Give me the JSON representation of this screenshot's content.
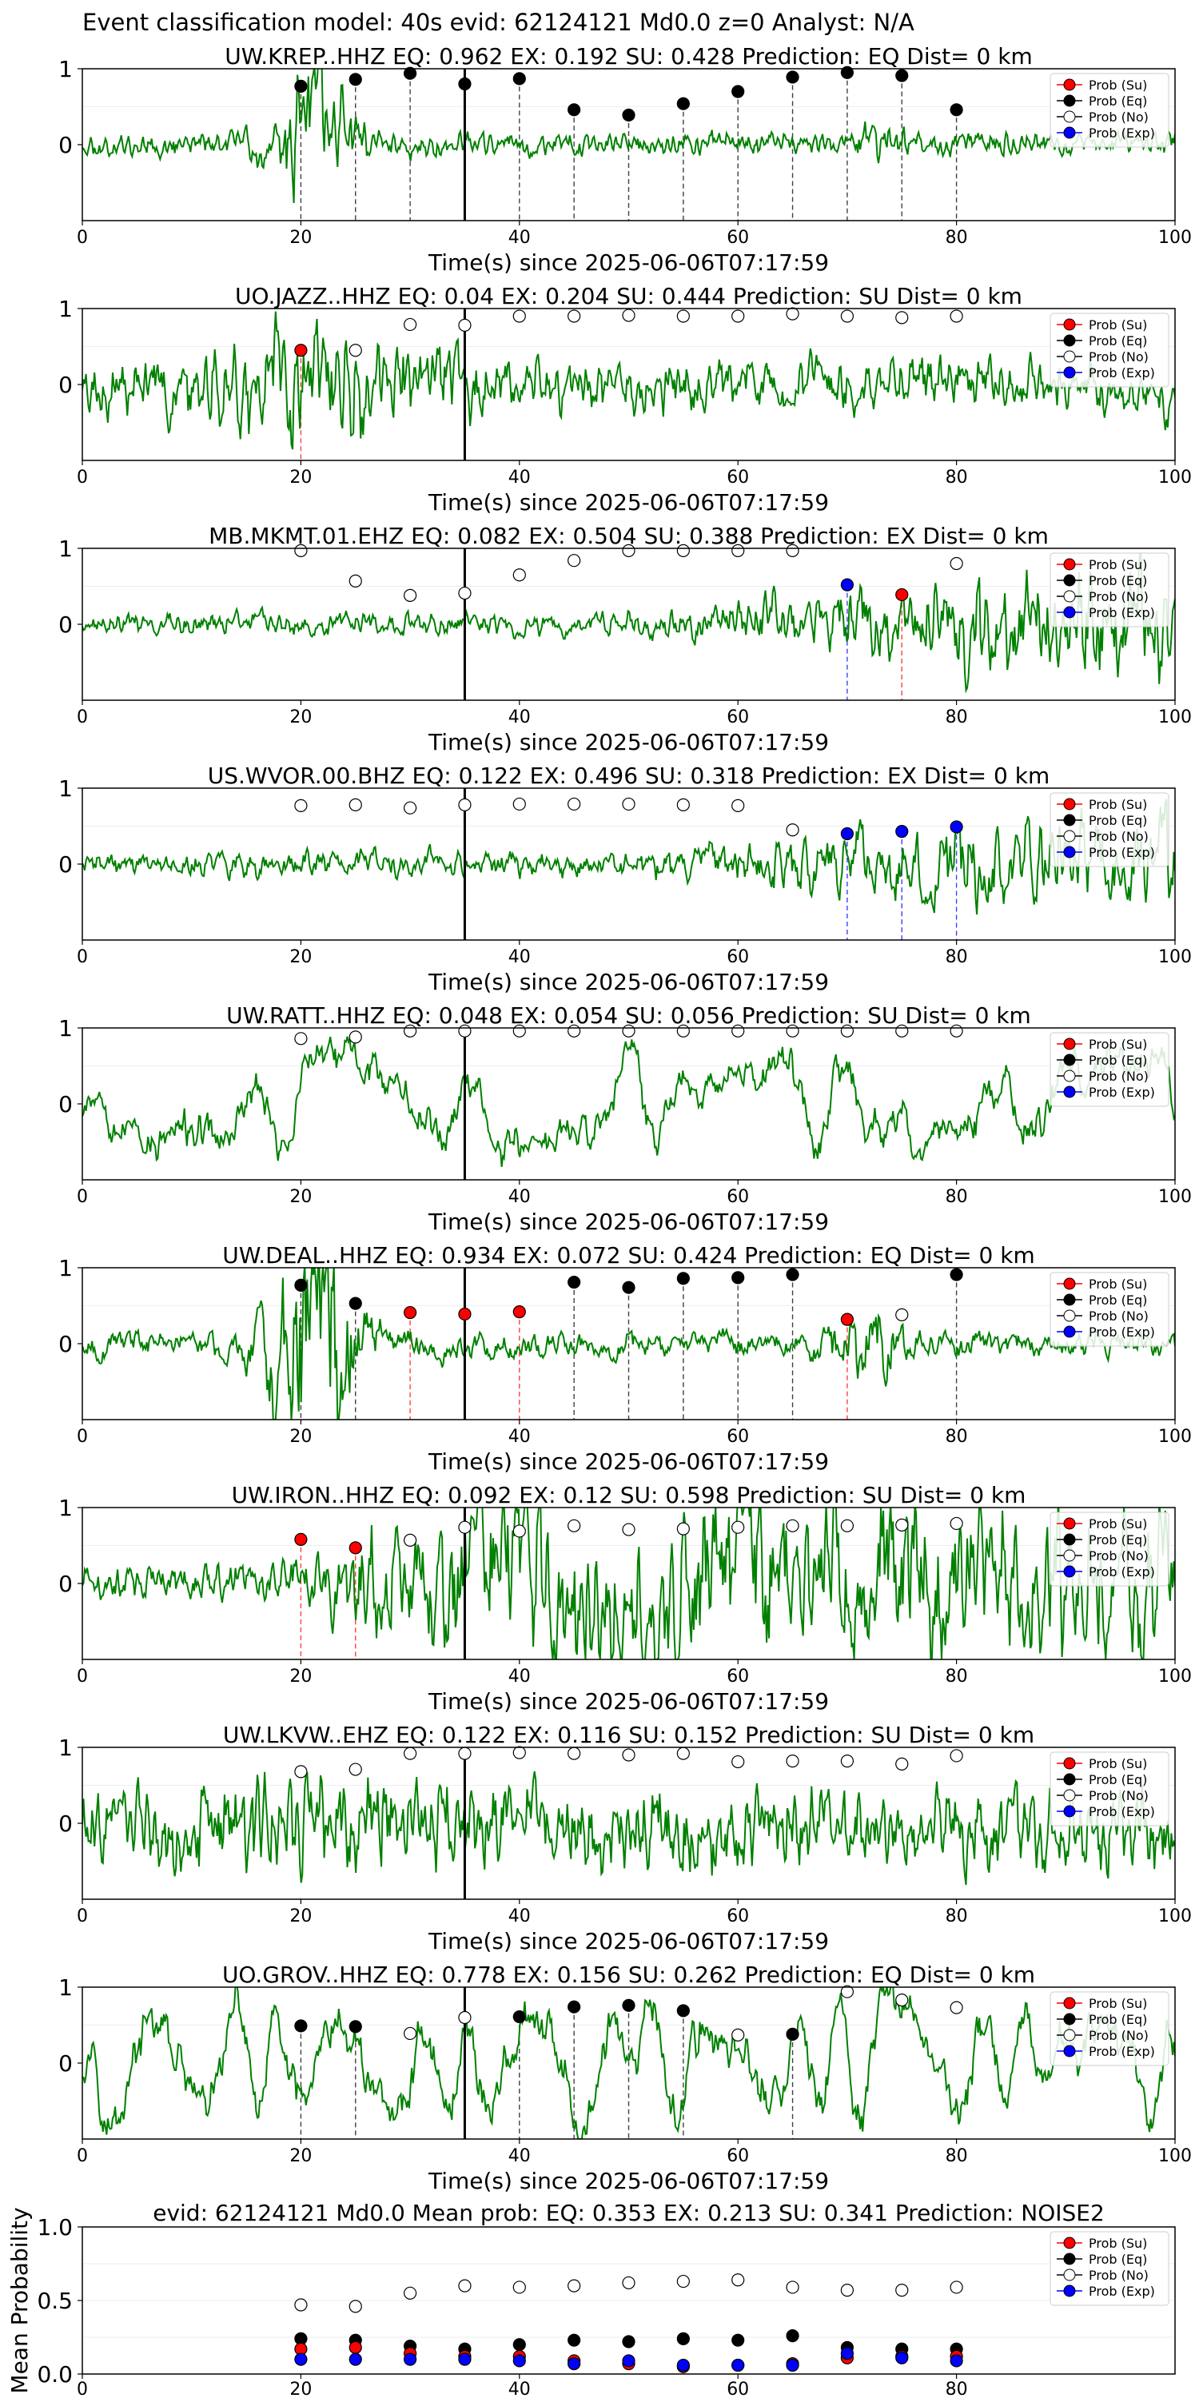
{
  "figure": {
    "suptitle": "Event classification model: 40s evid: 62124121 Md0.0 z=0 Analyst: N/A"
  },
  "legend_labels": [
    "Prob (Su)",
    "Prob (Eq)",
    "Prob (No)",
    "Prob (Exp)"
  ],
  "colors": {
    "waveform": "#008000",
    "su": "#ff0000",
    "eq": "#000000",
    "no": "#ffffff",
    "exp": "#0000ff",
    "event_line": "#000000"
  },
  "chart_data": {
    "stations": [
      {
        "type": "line",
        "title": "UW.KREP..HHZ   EQ: 0.962  EX: 0.192  SU: 0.428   Prediction: EQ    Dist= 0 km",
        "xlabel": "Time(s) since 2025-06-06T07:17:59",
        "xlim": [
          0,
          100
        ],
        "ylim": [
          -1,
          1
        ],
        "xticks": [
          0,
          20,
          40,
          60,
          80,
          100
        ],
        "yticks": [
          0,
          1
        ],
        "wave": {
          "kind": "burst",
          "seed": 11,
          "base": 0.12,
          "gain": 0.25,
          "freq": 3.0
        },
        "event_time": 35,
        "prob_markers": [
          {
            "x": 20,
            "y": 0.77,
            "class": "eq"
          },
          {
            "x": 25,
            "y": 0.86,
            "class": "eq"
          },
          {
            "x": 30,
            "y": 0.94,
            "class": "eq"
          },
          {
            "x": 35,
            "y": 0.8,
            "class": "eq"
          },
          {
            "x": 40,
            "y": 0.87,
            "class": "eq"
          },
          {
            "x": 45,
            "y": 0.46,
            "class": "eq"
          },
          {
            "x": 50,
            "y": 0.39,
            "class": "eq"
          },
          {
            "x": 55,
            "y": 0.54,
            "class": "eq"
          },
          {
            "x": 60,
            "y": 0.7,
            "class": "eq"
          },
          {
            "x": 65,
            "y": 0.89,
            "class": "eq"
          },
          {
            "x": 70,
            "y": 0.95,
            "class": "eq"
          },
          {
            "x": 75,
            "y": 0.91,
            "class": "eq"
          },
          {
            "x": 80,
            "y": 0.46,
            "class": "eq"
          }
        ]
      },
      {
        "type": "line",
        "title": "UO.JAZZ..HHZ   EQ: 0.04  EX: 0.204  SU: 0.444   Prediction: SU    Dist= 0 km",
        "xlabel": "Time(s) since 2025-06-06T07:17:59",
        "xlim": [
          0,
          100
        ],
        "ylim": [
          -1,
          1
        ],
        "xticks": [
          0,
          20,
          40,
          60,
          80,
          100
        ],
        "yticks": [
          0,
          1
        ],
        "wave": {
          "kind": "noisy",
          "seed": 23,
          "base": 0.28,
          "gain": 0.35,
          "freq": 2.2
        },
        "event_time": 35,
        "prob_markers": [
          {
            "x": 20,
            "y": 0.45,
            "class": "su"
          },
          {
            "x": 25,
            "y": 0.45,
            "class": "no"
          },
          {
            "x": 30,
            "y": 0.79,
            "class": "no"
          },
          {
            "x": 35,
            "y": 0.78,
            "class": "no"
          },
          {
            "x": 40,
            "y": 0.9,
            "class": "no"
          },
          {
            "x": 45,
            "y": 0.9,
            "class": "no"
          },
          {
            "x": 50,
            "y": 0.91,
            "class": "no"
          },
          {
            "x": 55,
            "y": 0.9,
            "class": "no"
          },
          {
            "x": 60,
            "y": 0.9,
            "class": "no"
          },
          {
            "x": 65,
            "y": 0.93,
            "class": "no"
          },
          {
            "x": 70,
            "y": 0.9,
            "class": "no"
          },
          {
            "x": 75,
            "y": 0.88,
            "class": "no"
          },
          {
            "x": 80,
            "y": 0.9,
            "class": "no"
          }
        ]
      },
      {
        "type": "line",
        "title": "MB.MKMT.01.EHZ   EQ: 0.082  EX: 0.504  SU: 0.388   Prediction: EX    Dist= 0 km",
        "xlabel": "Time(s) since 2025-06-06T07:17:59",
        "xlim": [
          0,
          100
        ],
        "ylim": [
          -1,
          1
        ],
        "xticks": [
          0,
          20,
          40,
          60,
          80,
          100
        ],
        "yticks": [
          0,
          1
        ],
        "wave": {
          "kind": "rising",
          "seed": 37,
          "base": 0.12,
          "gain": 0.55,
          "freq": 2.6
        },
        "event_time": 35,
        "prob_markers": [
          {
            "x": 20,
            "y": 0.97,
            "class": "no"
          },
          {
            "x": 25,
            "y": 0.57,
            "class": "no"
          },
          {
            "x": 30,
            "y": 0.38,
            "class": "no"
          },
          {
            "x": 35,
            "y": 0.41,
            "class": "no"
          },
          {
            "x": 40,
            "y": 0.65,
            "class": "no"
          },
          {
            "x": 45,
            "y": 0.84,
            "class": "no"
          },
          {
            "x": 50,
            "y": 0.97,
            "class": "no"
          },
          {
            "x": 55,
            "y": 0.97,
            "class": "no"
          },
          {
            "x": 60,
            "y": 0.97,
            "class": "no"
          },
          {
            "x": 65,
            "y": 0.97,
            "class": "no"
          },
          {
            "x": 70,
            "y": 0.52,
            "class": "exp"
          },
          {
            "x": 75,
            "y": 0.39,
            "class": "su"
          },
          {
            "x": 80,
            "y": 0.8,
            "class": "no"
          }
        ]
      },
      {
        "type": "line",
        "title": "US.WVOR.00.BHZ   EQ: 0.122  EX: 0.496  SU: 0.318   Prediction: EX    Dist= 0 km",
        "xlabel": "Time(s) since 2025-06-06T07:17:59",
        "xlim": [
          0,
          100
        ],
        "ylim": [
          -1,
          1
        ],
        "xticks": [
          0,
          20,
          40,
          60,
          80,
          100
        ],
        "yticks": [
          0,
          1
        ],
        "wave": {
          "kind": "rising",
          "seed": 41,
          "base": 0.14,
          "gain": 0.45,
          "freq": 1.6
        },
        "event_time": 35,
        "prob_markers": [
          {
            "x": 20,
            "y": 0.77,
            "class": "no"
          },
          {
            "x": 25,
            "y": 0.78,
            "class": "no"
          },
          {
            "x": 30,
            "y": 0.74,
            "class": "no"
          },
          {
            "x": 35,
            "y": 0.78,
            "class": "no"
          },
          {
            "x": 40,
            "y": 0.79,
            "class": "no"
          },
          {
            "x": 45,
            "y": 0.79,
            "class": "no"
          },
          {
            "x": 50,
            "y": 0.79,
            "class": "no"
          },
          {
            "x": 55,
            "y": 0.78,
            "class": "no"
          },
          {
            "x": 60,
            "y": 0.77,
            "class": "no"
          },
          {
            "x": 65,
            "y": 0.45,
            "class": "no"
          },
          {
            "x": 70,
            "y": 0.4,
            "class": "exp"
          },
          {
            "x": 75,
            "y": 0.43,
            "class": "exp"
          },
          {
            "x": 80,
            "y": 0.49,
            "class": "exp"
          }
        ]
      },
      {
        "type": "line",
        "title": "UW.RATT..HHZ   EQ: 0.048  EX: 0.054  SU: 0.056   Prediction: SU    Dist= 0 km",
        "xlabel": "Time(s) since 2025-06-06T07:17:59",
        "xlim": [
          0,
          100
        ],
        "ylim": [
          -1,
          1
        ],
        "xticks": [
          0,
          20,
          40,
          60,
          80,
          100
        ],
        "yticks": [
          0,
          1
        ],
        "wave": {
          "kind": "slow",
          "seed": 53,
          "base": 0.6,
          "gain": 0.0,
          "freq": 0.55
        },
        "event_time": 35,
        "prob_markers": [
          {
            "x": 20,
            "y": 0.86,
            "class": "no"
          },
          {
            "x": 25,
            "y": 0.88,
            "class": "no"
          },
          {
            "x": 30,
            "y": 0.96,
            "class": "no"
          },
          {
            "x": 35,
            "y": 0.96,
            "class": "no"
          },
          {
            "x": 40,
            "y": 0.96,
            "class": "no"
          },
          {
            "x": 45,
            "y": 0.96,
            "class": "no"
          },
          {
            "x": 50,
            "y": 0.96,
            "class": "no"
          },
          {
            "x": 55,
            "y": 0.96,
            "class": "no"
          },
          {
            "x": 60,
            "y": 0.96,
            "class": "no"
          },
          {
            "x": 65,
            "y": 0.96,
            "class": "no"
          },
          {
            "x": 70,
            "y": 0.96,
            "class": "no"
          },
          {
            "x": 75,
            "y": 0.96,
            "class": "no"
          },
          {
            "x": 80,
            "y": 0.96,
            "class": "no"
          }
        ]
      },
      {
        "type": "line",
        "title": "UW.DEAL..HHZ   EQ: 0.934  EX: 0.072  SU: 0.424   Prediction: EQ    Dist= 0 km",
        "xlabel": "Time(s) since 2025-06-06T07:17:59",
        "xlim": [
          0,
          100
        ],
        "ylim": [
          -1,
          1
        ],
        "xticks": [
          0,
          20,
          40,
          60,
          80,
          100
        ],
        "yticks": [
          0,
          1
        ],
        "wave": {
          "kind": "burst",
          "seed": 67,
          "base": 0.14,
          "gain": 0.6,
          "freq": 0.9
        },
        "event_time": 35,
        "prob_markers": [
          {
            "x": 20,
            "y": 0.77,
            "class": "eq"
          },
          {
            "x": 25,
            "y": 0.53,
            "class": "eq"
          },
          {
            "x": 30,
            "y": 0.41,
            "class": "su"
          },
          {
            "x": 35,
            "y": 0.39,
            "class": "su"
          },
          {
            "x": 40,
            "y": 0.42,
            "class": "su"
          },
          {
            "x": 45,
            "y": 0.81,
            "class": "eq"
          },
          {
            "x": 50,
            "y": 0.74,
            "class": "eq"
          },
          {
            "x": 55,
            "y": 0.86,
            "class": "eq"
          },
          {
            "x": 60,
            "y": 0.87,
            "class": "eq"
          },
          {
            "x": 65,
            "y": 0.91,
            "class": "eq"
          },
          {
            "x": 70,
            "y": 0.32,
            "class": "su"
          },
          {
            "x": 75,
            "y": 0.38,
            "class": "no"
          },
          {
            "x": 80,
            "y": 0.91,
            "class": "eq"
          }
        ]
      },
      {
        "type": "line",
        "title": "UW.IRON..HHZ   EQ: 0.092  EX: 0.12  SU: 0.598   Prediction: SU    Dist= 0 km",
        "xlabel": "Time(s) since 2025-06-06T07:17:59",
        "xlim": [
          0,
          100
        ],
        "ylim": [
          -1,
          1
        ],
        "xticks": [
          0,
          20,
          40,
          60,
          80,
          100
        ],
        "yticks": [
          0,
          1
        ],
        "wave": {
          "kind": "burst_sustain",
          "seed": 71,
          "base": 0.2,
          "gain": 0.7,
          "freq": 2.0
        },
        "event_time": 35,
        "prob_markers": [
          {
            "x": 20,
            "y": 0.58,
            "class": "su"
          },
          {
            "x": 25,
            "y": 0.47,
            "class": "su"
          },
          {
            "x": 30,
            "y": 0.57,
            "class": "no"
          },
          {
            "x": 35,
            "y": 0.74,
            "class": "no"
          },
          {
            "x": 40,
            "y": 0.69,
            "class": "no"
          },
          {
            "x": 45,
            "y": 0.76,
            "class": "no"
          },
          {
            "x": 50,
            "y": 0.71,
            "class": "no"
          },
          {
            "x": 55,
            "y": 0.72,
            "class": "no"
          },
          {
            "x": 60,
            "y": 0.74,
            "class": "no"
          },
          {
            "x": 65,
            "y": 0.76,
            "class": "no"
          },
          {
            "x": 70,
            "y": 0.76,
            "class": "no"
          },
          {
            "x": 75,
            "y": 0.77,
            "class": "no"
          },
          {
            "x": 80,
            "y": 0.79,
            "class": "no"
          }
        ]
      },
      {
        "type": "line",
        "title": "UW.LKVW..EHZ   EQ: 0.122  EX: 0.116  SU: 0.152   Prediction: SU    Dist= 0 km",
        "xlabel": "Time(s) since 2025-06-06T07:17:59",
        "xlim": [
          0,
          100
        ],
        "ylim": [
          -1,
          1
        ],
        "xticks": [
          0,
          20,
          40,
          60,
          80,
          100
        ],
        "yticks": [
          0,
          1
        ],
        "wave": {
          "kind": "noisy",
          "seed": 83,
          "base": 0.45,
          "gain": 0.05,
          "freq": 2.8
        },
        "event_time": 35,
        "prob_markers": [
          {
            "x": 20,
            "y": 0.68,
            "class": "no"
          },
          {
            "x": 25,
            "y": 0.71,
            "class": "no"
          },
          {
            "x": 30,
            "y": 0.92,
            "class": "no"
          },
          {
            "x": 35,
            "y": 0.92,
            "class": "no"
          },
          {
            "x": 40,
            "y": 0.93,
            "class": "no"
          },
          {
            "x": 45,
            "y": 0.92,
            "class": "no"
          },
          {
            "x": 50,
            "y": 0.9,
            "class": "no"
          },
          {
            "x": 55,
            "y": 0.92,
            "class": "no"
          },
          {
            "x": 60,
            "y": 0.81,
            "class": "no"
          },
          {
            "x": 65,
            "y": 0.82,
            "class": "no"
          },
          {
            "x": 70,
            "y": 0.82,
            "class": "no"
          },
          {
            "x": 75,
            "y": 0.78,
            "class": "no"
          },
          {
            "x": 80,
            "y": 0.89,
            "class": "no"
          }
        ]
      },
      {
        "type": "line",
        "title": "UO.GROV..HHZ   EQ: 0.778  EX: 0.156  SU: 0.262   Prediction: EQ    Dist= 0 km",
        "xlabel": "Time(s) since 2025-06-06T07:17:59",
        "xlim": [
          0,
          100
        ],
        "ylim": [
          -1,
          1
        ],
        "xticks": [
          0,
          20,
          40,
          60,
          80,
          100
        ],
        "yticks": [
          0,
          1
        ],
        "wave": {
          "kind": "slow",
          "seed": 97,
          "base": 0.7,
          "gain": 0.0,
          "freq": 1.1
        },
        "event_time": 35,
        "prob_markers": [
          {
            "x": 20,
            "y": 0.49,
            "class": "eq"
          },
          {
            "x": 25,
            "y": 0.48,
            "class": "eq"
          },
          {
            "x": 30,
            "y": 0.39,
            "class": "no"
          },
          {
            "x": 35,
            "y": 0.6,
            "class": "no"
          },
          {
            "x": 40,
            "y": 0.61,
            "class": "eq"
          },
          {
            "x": 45,
            "y": 0.74,
            "class": "eq"
          },
          {
            "x": 50,
            "y": 0.76,
            "class": "eq"
          },
          {
            "x": 55,
            "y": 0.69,
            "class": "eq"
          },
          {
            "x": 60,
            "y": 0.37,
            "class": "no"
          },
          {
            "x": 65,
            "y": 0.38,
            "class": "eq"
          },
          {
            "x": 70,
            "y": 0.94,
            "class": "no"
          },
          {
            "x": 75,
            "y": 0.83,
            "class": "no"
          },
          {
            "x": 80,
            "y": 0.73,
            "class": "no"
          }
        ]
      }
    ],
    "summary": {
      "type": "scatter",
      "title": "evid: 62124121  Md0.0   Mean prob:    EQ: 0.353  EX: 0.213  SU: 0.341   Prediction: NOISE2",
      "ylabel": "Mean Probability",
      "xlim": [
        0,
        100
      ],
      "ylim": [
        0,
        1
      ],
      "xticks": [
        0,
        20,
        40,
        60,
        80
      ],
      "yticks": [
        0.0,
        0.5,
        1.0
      ],
      "ytick_labels": [
        "0.0",
        "0.5",
        "1.0"
      ],
      "x": [
        20,
        25,
        30,
        35,
        40,
        45,
        50,
        55,
        60,
        65,
        70,
        75,
        80
      ],
      "series": [
        {
          "name": "Prob (No)",
          "class": "no",
          "values": [
            0.47,
            0.46,
            0.55,
            0.6,
            0.59,
            0.6,
            0.62,
            0.63,
            0.64,
            0.59,
            0.57,
            0.57,
            0.59
          ]
        },
        {
          "name": "Prob (Eq)",
          "class": "eq",
          "values": [
            0.24,
            0.23,
            0.19,
            0.17,
            0.2,
            0.23,
            0.22,
            0.24,
            0.23,
            0.26,
            0.18,
            0.17,
            0.17
          ]
        },
        {
          "name": "Prob (Su)",
          "class": "su",
          "values": [
            0.17,
            0.18,
            0.14,
            0.12,
            0.12,
            0.09,
            0.07,
            0.05,
            0.06,
            0.07,
            0.11,
            0.12,
            0.12
          ]
        },
        {
          "name": "Prob (Exp)",
          "class": "exp",
          "values": [
            0.1,
            0.1,
            0.1,
            0.1,
            0.09,
            0.07,
            0.09,
            0.06,
            0.06,
            0.06,
            0.14,
            0.11,
            0.09
          ]
        }
      ]
    }
  }
}
